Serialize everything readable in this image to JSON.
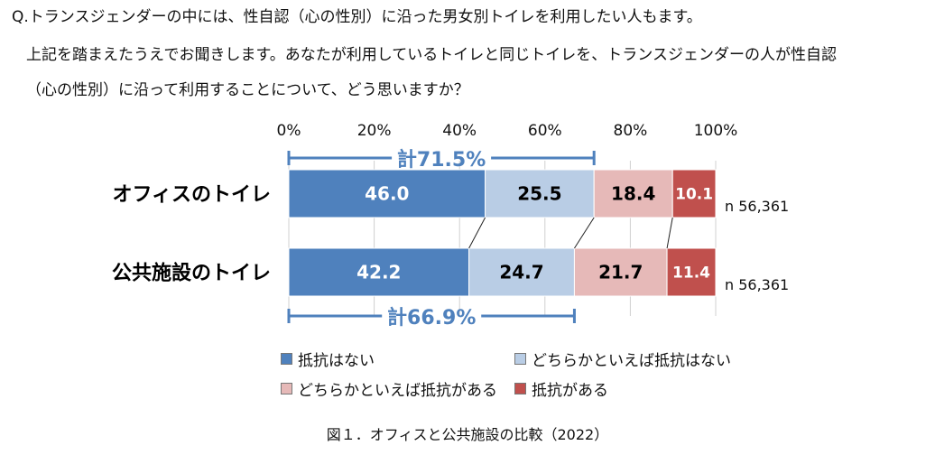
{
  "question": {
    "line1": "Q.トランスジェンダーの中には、性自認（心の性別）に沿った男女別トイレを利用したい人もます。",
    "line2": "上記を踏まえたうえでお聞きします。あなたが利用しているトイレと同じトイレを、トランスジェンダーの人が性自認",
    "line3": "（心の性別）に沿って利用することについて、どう思いますか？"
  },
  "chart_data": {
    "type": "bar",
    "orientation": "horizontal-stacked-100",
    "categories": [
      "オフィスのトイレ",
      "公共施設のトイレ"
    ],
    "series": [
      {
        "name": "抵抗はない",
        "values": [
          46.0,
          42.2
        ],
        "color": "#4f81bd",
        "label_color": "#ffffff"
      },
      {
        "name": "どちらかといえば抵抗はない",
        "values": [
          25.5,
          24.7
        ],
        "color": "#b9cde5",
        "label_color": "#000000"
      },
      {
        "name": "どちらかといえば抵抗がある",
        "values": [
          18.4,
          21.7
        ],
        "color": "#e6b9b8",
        "label_color": "#000000"
      },
      {
        "name": "抵抗がある",
        "values": [
          10.1,
          11.4
        ],
        "color": "#c0504d",
        "label_color": "#ffffff"
      }
    ],
    "value_labels": [
      [
        "46.0",
        "25.5",
        "18.4",
        "10.1"
      ],
      [
        "42.2",
        "24.7",
        "21.7",
        "11.4"
      ]
    ],
    "xlim": [
      0,
      100
    ],
    "x_ticks": [
      "0%",
      "20%",
      "40%",
      "60%",
      "80%",
      "100%"
    ],
    "x_tick_values": [
      0,
      20,
      40,
      60,
      80,
      100
    ],
    "sample_sizes": [
      "n 56,361",
      "n 56,361"
    ],
    "brackets": [
      {
        "label": "計71.5%",
        "from": 0,
        "to": 71.5,
        "category": 0,
        "side": "above"
      },
      {
        "label": "計66.9%",
        "from": 0,
        "to": 66.9,
        "category": 1,
        "side": "below"
      }
    ],
    "bracket_color": "#4f81bd",
    "title": "図１．オフィスと公共施設の比較（2022）"
  }
}
